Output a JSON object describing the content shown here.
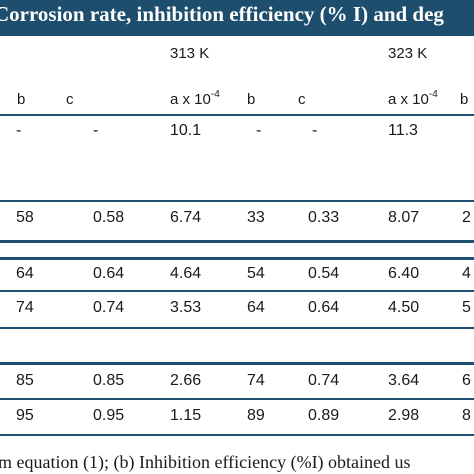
{
  "title": "Corrosion rate, inhibition efficiency (% I) and deg",
  "temps": [
    "313 K",
    "323 K"
  ],
  "columns": {
    "b": "b",
    "c": "c",
    "a_prefix": "a x 10",
    "a_exp": "-4"
  },
  "rows": [
    [
      "-",
      "-",
      "10.1",
      "-",
      "-",
      "11.3"
    ],
    [
      "58",
      "0.58",
      "6.74",
      "33",
      "0.33",
      "8.07"
    ],
    [
      "64",
      "0.64",
      "4.64",
      "54",
      "0.54",
      "6.40"
    ],
    [
      "74",
      "0.74",
      "3.53",
      "64",
      "0.64",
      "4.50"
    ],
    [
      "85",
      "0.85",
      "2.66",
      "74",
      "0.74",
      "3.64"
    ],
    [
      "95",
      "0.95",
      "1.15",
      "89",
      "0.89",
      "2.98"
    ]
  ],
  "footnote": "m equation (1); (b) Inhibition efficiency (%I) obtained us",
  "colors": {
    "header_bg": "#1e4e6e",
    "rule": "#1e4e6e",
    "text": "#1a1a1a"
  }
}
